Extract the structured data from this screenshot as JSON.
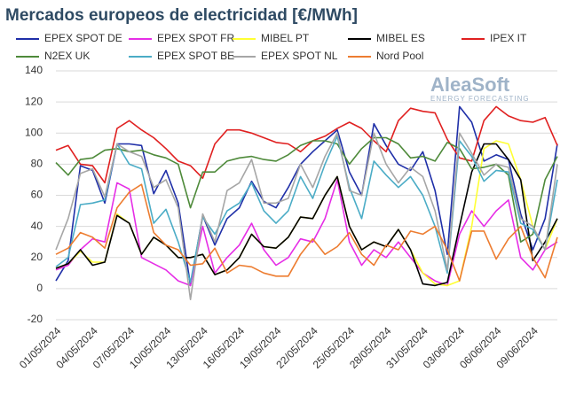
{
  "chart_data": {
    "type": "line",
    "title": "Mercados europeos de electricidad [€/MWh]",
    "watermark": {
      "brand": "AleaSoft",
      "tagline": "ENERGY FORECASTING"
    },
    "categories": [
      "01/05/2024",
      null,
      null,
      "04/05/2024",
      null,
      null,
      "07/05/2024",
      null,
      null,
      "10/05/2024",
      null,
      null,
      "13/05/2024",
      null,
      null,
      "16/05/2024",
      null,
      null,
      "19/05/2024",
      null,
      null,
      "22/05/2024",
      null,
      null,
      "25/05/2024",
      null,
      null,
      "28/05/2024",
      null,
      null,
      "31/05/2024",
      null,
      null,
      "03/06/2024",
      null,
      null,
      "06/06/2024",
      null,
      null,
      "09/06/2024",
      null,
      null
    ],
    "ylim": [
      -20,
      140
    ],
    "yticks": [
      -20,
      0,
      20,
      40,
      60,
      80,
      100,
      120,
      140
    ],
    "grid": true,
    "series": [
      {
        "name": "EPEX SPOT DE",
        "color": "#1f2fa8",
        "values": [
          5,
          18,
          79,
          76,
          55,
          93,
          93,
          92,
          61,
          76,
          55,
          2,
          47,
          28,
          45,
          52,
          69,
          56,
          52,
          65,
          80,
          88,
          95,
          102,
          75,
          60,
          106,
          92,
          80,
          76,
          88,
          63,
          22,
          117,
          107,
          82,
          86,
          83,
          48,
          25,
          45,
          93
        ]
      },
      {
        "name": "EPEX SPOT FR",
        "color": "#e62ee6",
        "values": [
          12,
          15,
          25,
          32,
          30,
          68,
          64,
          20,
          16,
          12,
          5,
          2,
          40,
          10,
          20,
          28,
          42,
          25,
          15,
          20,
          32,
          30,
          45,
          70,
          30,
          15,
          25,
          20,
          30,
          20,
          10,
          5,
          2,
          35,
          50,
          40,
          50,
          57,
          20,
          12,
          25,
          30
        ]
      },
      {
        "name": "MIBEL PT",
        "color": "#ffff33",
        "values": [
          13,
          16,
          24,
          17,
          17,
          48,
          42,
          22,
          33,
          28,
          20,
          20,
          22,
          9,
          12,
          20,
          35,
          27,
          26,
          33,
          46,
          45,
          60,
          72,
          40,
          25,
          30,
          27,
          38,
          25,
          10,
          3,
          2,
          5,
          40,
          90,
          95,
          93,
          70,
          40,
          25,
          45
        ]
      },
      {
        "name": "MIBEL ES",
        "color": "#000000",
        "values": [
          13,
          16,
          25,
          15,
          17,
          47,
          42,
          22,
          33,
          28,
          20,
          20,
          22,
          9,
          12,
          20,
          35,
          27,
          26,
          33,
          46,
          45,
          60,
          72,
          40,
          25,
          30,
          27,
          38,
          25,
          3,
          2,
          4,
          40,
          75,
          93,
          93,
          83,
          70,
          18,
          30,
          45
        ]
      },
      {
        "name": "IPEX IT",
        "color": "#e02020",
        "values": [
          89,
          92,
          80,
          79,
          68,
          103,
          108,
          102,
          97,
          90,
          82,
          79,
          71,
          93,
          102,
          102,
          100,
          97,
          94,
          93,
          88,
          95,
          98,
          103,
          107,
          103,
          95,
          88,
          108,
          116,
          114,
          113,
          96,
          84,
          82,
          108,
          117,
          111,
          108,
          107,
          110,
          92
        ]
      },
      {
        "name": "N2EX UK",
        "color": "#4e8a3a",
        "values": [
          81,
          73,
          83,
          84,
          89,
          90,
          88,
          89,
          86,
          84,
          80,
          52,
          75,
          75,
          82,
          84,
          85,
          83,
          82,
          86,
          92,
          95,
          95,
          93,
          80,
          90,
          97,
          97,
          93,
          84,
          85,
          82,
          94,
          90,
          77,
          78,
          80,
          73,
          30,
          35,
          70,
          85
        ]
      },
      {
        "name": "EPEX SPOT BE",
        "color": "#4bacc6",
        "values": [
          14,
          20,
          54,
          55,
          57,
          93,
          80,
          77,
          42,
          51,
          30,
          4,
          46,
          35,
          50,
          55,
          68,
          50,
          42,
          50,
          72,
          58,
          80,
          98,
          65,
          45,
          82,
          73,
          65,
          72,
          60,
          40,
          10,
          95,
          85,
          69,
          76,
          75,
          42,
          38,
          25,
          70
        ]
      },
      {
        "name": "EPEX SPOT NL",
        "color": "#a6a6a6",
        "values": [
          25,
          45,
          74,
          77,
          59,
          93,
          88,
          85,
          65,
          70,
          52,
          -7,
          48,
          30,
          63,
          68,
          83,
          55,
          55,
          58,
          80,
          65,
          85,
          100,
          63,
          60,
          100,
          80,
          68,
          78,
          72,
          50,
          12,
          100,
          87,
          73,
          80,
          78,
          45,
          40,
          25,
          80
        ]
      },
      {
        "name": "Nord Pool",
        "color": "#ed7d31",
        "values": [
          22,
          26,
          36,
          33,
          26,
          52,
          62,
          67,
          36,
          28,
          25,
          15,
          16,
          26,
          10,
          15,
          14,
          10,
          8,
          8,
          22,
          32,
          22,
          27,
          36,
          22,
          15,
          28,
          25,
          37,
          35,
          40,
          25,
          5,
          37,
          37,
          19,
          32,
          40,
          20,
          7,
          33
        ]
      }
    ]
  }
}
